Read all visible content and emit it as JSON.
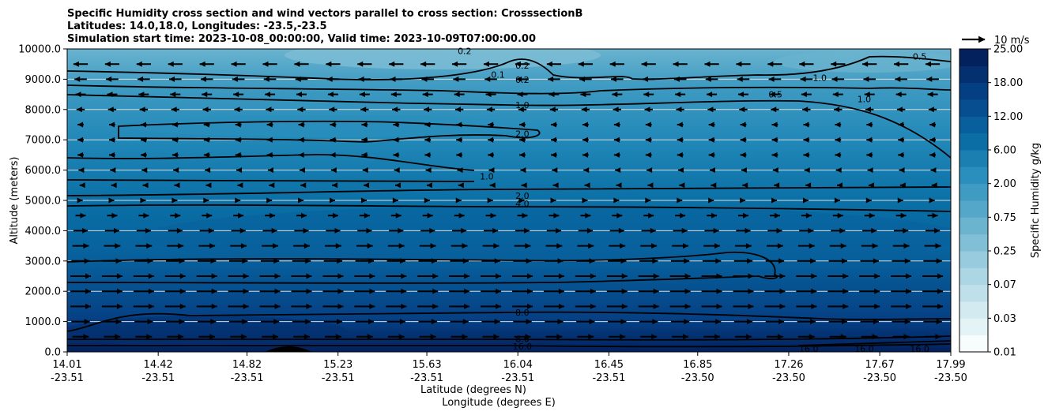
{
  "chart_data": {
    "type": "contour",
    "title_lines": [
      "Specific Humidity cross section and wind vectors parallel to cross section: CrosssectionB",
      "Latitudes: 14.0,18.0, Longitudes: -23.5,-23.5",
      "Simulation start time: 2023-10-08_00:00:00, Valid time: 2023-10-09T07:00:00.00"
    ],
    "ylabel": "Altitude (meters)",
    "xlabel_lat": "Latitude (degrees N)",
    "xlabel_lon": "Longitude (degrees E)",
    "ylim": [
      0,
      10000
    ],
    "y_ticks": [
      "0.0",
      "1000.0",
      "2000.0",
      "3000.0",
      "4000.0",
      "5000.0",
      "6000.0",
      "7000.0",
      "8000.0",
      "9000.0",
      "10000.0"
    ],
    "x_ticks": [
      {
        "lat": "14.01",
        "lon": "-23.51"
      },
      {
        "lat": "14.42",
        "lon": "-23.51"
      },
      {
        "lat": "14.82",
        "lon": "-23.51"
      },
      {
        "lat": "15.23",
        "lon": "-23.51"
      },
      {
        "lat": "15.63",
        "lon": "-23.51"
      },
      {
        "lat": "16.04",
        "lon": "-23.51"
      },
      {
        "lat": "16.45",
        "lon": "-23.51"
      },
      {
        "lat": "16.85",
        "lon": "-23.50"
      },
      {
        "lat": "17.26",
        "lon": "-23.50"
      },
      {
        "lat": "17.67",
        "lon": "-23.50"
      },
      {
        "lat": "17.99",
        "lon": "-23.50"
      }
    ],
    "colorbar": {
      "label": "Specific Humidity g/kg",
      "tick_labels": [
        "0.01",
        "0.03",
        "0.07",
        "0.25",
        "0.75",
        "2.00",
        "6.00",
        "12.00",
        "18.00",
        "25.00"
      ],
      "levels": [
        0.01,
        0.02,
        0.03,
        0.05,
        0.07,
        0.1,
        0.25,
        0.5,
        0.75,
        1.0,
        2.0,
        4.0,
        6.0,
        8.0,
        12.0,
        16.0,
        18.0,
        20.0,
        25.0
      ],
      "colors": [
        "#f7fcfd",
        "#e4f3f6",
        "#d2eaf0",
        "#bfe0ea",
        "#acd6e4",
        "#97cbdd",
        "#81bfd6",
        "#6bb3cf",
        "#55a7c9",
        "#3f9bc2",
        "#2a8fbc",
        "#1c7fb1",
        "#0b6fa6",
        "#085f9c",
        "#064e8f",
        "#053f83",
        "#04306f",
        "#03215d"
      ]
    },
    "quiver_key": "10 m/s",
    "contour_labels": [
      {
        "text": "0.2",
        "alt": 9930,
        "lat": 15.8
      },
      {
        "text": "0.2",
        "alt": 9450,
        "lat": 16.06
      },
      {
        "text": "0.1",
        "alt": 9150,
        "lat": 15.95
      },
      {
        "text": "0.2",
        "alt": 8990,
        "lat": 16.06
      },
      {
        "text": "1.0",
        "alt": 8150,
        "lat": 16.06
      },
      {
        "text": "2.0",
        "alt": 7200,
        "lat": 16.06
      },
      {
        "text": "1.0",
        "alt": 5800,
        "lat": 15.9
      },
      {
        "text": "2.0",
        "alt": 5150,
        "lat": 16.06
      },
      {
        "text": "4.0",
        "alt": 4900,
        "lat": 16.06
      },
      {
        "text": "8.0",
        "alt": 1300,
        "lat": 16.06
      },
      {
        "text": "8.0",
        "alt": 430,
        "lat": 16.06
      },
      {
        "text": "16.0",
        "alt": 180,
        "lat": 16.06
      },
      {
        "text": "0.5",
        "alt": 9750,
        "lat": 17.85
      },
      {
        "text": "1.0",
        "alt": 9050,
        "lat": 17.4
      },
      {
        "text": "0.5",
        "alt": 8500,
        "lat": 17.2
      },
      {
        "text": "1.0",
        "alt": 8350,
        "lat": 17.6
      },
      {
        "text": "16.0",
        "alt": 100,
        "lat": 17.35
      },
      {
        "text": "16.0",
        "alt": 100,
        "lat": 17.6
      },
      {
        "text": "16.0",
        "alt": 100,
        "lat": 17.85
      }
    ],
    "wind": {
      "rows": [
        {
          "alt": 500,
          "u": 8
        },
        {
          "alt": 1000,
          "u": 9
        },
        {
          "alt": 1500,
          "u": 10
        },
        {
          "alt": 2000,
          "u": 10
        },
        {
          "alt": 2500,
          "u": 10
        },
        {
          "alt": 3000,
          "u": 9
        },
        {
          "alt": 3500,
          "u": 8
        },
        {
          "alt": 4000,
          "u": 7
        },
        {
          "alt": 4500,
          "u": 5
        },
        {
          "alt": 5000,
          "u": 2
        },
        {
          "alt": 5500,
          "u": -1
        },
        {
          "alt": 6000,
          "u": -2
        },
        {
          "alt": 6500,
          "u": -3
        },
        {
          "alt": 7000,
          "u": -3
        },
        {
          "alt": 7500,
          "u": -3
        },
        {
          "alt": 8000,
          "u": -4
        },
        {
          "alt": 8500,
          "u": -5
        },
        {
          "alt": 9000,
          "u": -6
        },
        {
          "alt": 9500,
          "u": -7
        }
      ],
      "columns": 28
    }
  }
}
